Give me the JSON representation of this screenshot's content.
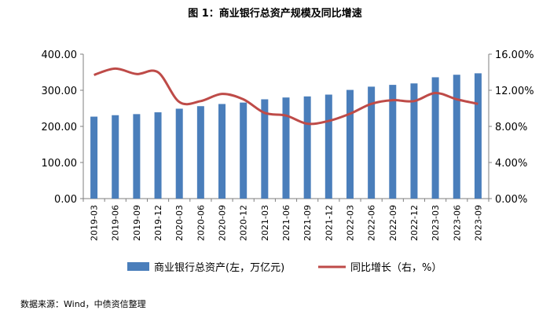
{
  "chart_data": {
    "type": "bar+line",
    "title": "图 1：商业银行总资产规模及同比增速",
    "categories": [
      "2019-03",
      "2019-06",
      "2019-09",
      "2019-12",
      "2020-03",
      "2020-06",
      "2020-09",
      "2020-12",
      "2021-03",
      "2021-06",
      "2021-09",
      "2021-12",
      "2022-03",
      "2022-06",
      "2022-09",
      "2022-12",
      "2023-03",
      "2023-06",
      "2023-09"
    ],
    "series": [
      {
        "name": "商业银行总资产(左，万亿元)",
        "kind": "bar",
        "axis": "left",
        "color": "#4a7ebb",
        "values": [
          227,
          231,
          234,
          239,
          249,
          256,
          262,
          266,
          275,
          280,
          283,
          288,
          301,
          310,
          315,
          319,
          336,
          343,
          347
        ]
      },
      {
        "name": "同比增长（右，%）",
        "kind": "line",
        "axis": "right",
        "color": "#be4b48",
        "values": [
          13.7,
          14.4,
          13.8,
          14.0,
          10.7,
          10.8,
          11.6,
          11.0,
          9.5,
          9.2,
          8.3,
          8.6,
          9.4,
          10.5,
          10.9,
          10.8,
          11.7,
          11.0,
          10.5
        ]
      }
    ],
    "yleft": {
      "min": 0,
      "max": 400,
      "ticks": [
        "0.00",
        "100.00",
        "200.00",
        "300.00",
        "400.00"
      ]
    },
    "yright": {
      "min": 0,
      "max": 16,
      "ticks": [
        "0.00%",
        "4.00%",
        "8.00%",
        "12.00%",
        "16.00%"
      ]
    },
    "legend_position": "bottom",
    "grid": false
  },
  "source_note": "数据来源：Wind，中债资信整理"
}
